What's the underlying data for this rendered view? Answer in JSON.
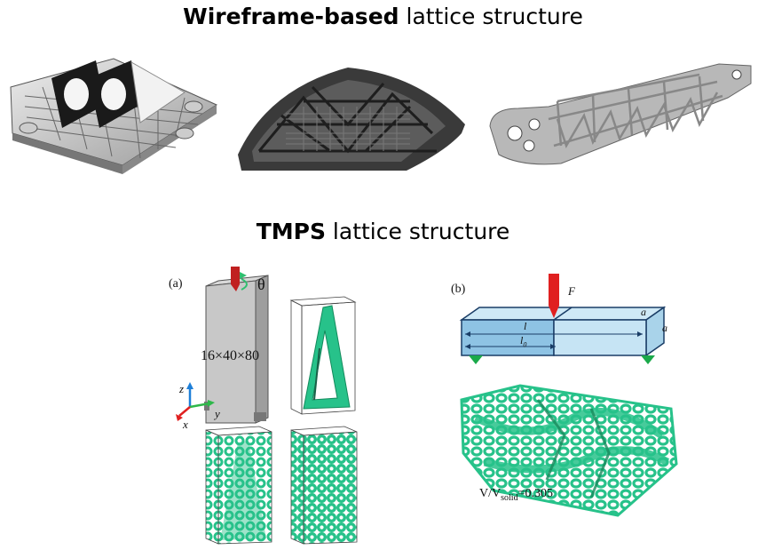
{
  "titles": {
    "wireframe_bold": "Wireframe-based",
    "wireframe_rest": " lattice structure",
    "tmps_bold": "TMPS",
    "tmps_rest": " lattice structure"
  },
  "panel_a": {
    "label": "(a)",
    "theta": "θ",
    "dimensions": "16×40×80",
    "axis_z": "z",
    "axis_x": "x",
    "axis_y": "y"
  },
  "panel_b": {
    "label": "(b)",
    "force": "F",
    "dim_a_top": "a",
    "dim_a_side": "a",
    "dim_l": "l",
    "dim_l0": "l",
    "dim_l0_sub": "0",
    "ratio_prefix": "V/V",
    "ratio_sub": "solid",
    "ratio_value": "=0.305"
  },
  "colors": {
    "lattice_green": "#27c28a",
    "dark_part": "#3a3a3a",
    "grey_part": "#bfbfbf",
    "beam_blue": "#a8d4ec",
    "force_red": "#e02020"
  }
}
